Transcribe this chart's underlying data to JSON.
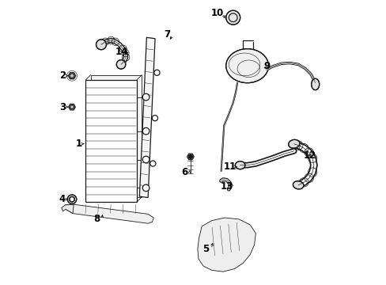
{
  "background_color": "#ffffff",
  "line_color": "#1a1a1a",
  "text_color": "#000000",
  "figsize": [
    4.89,
    3.6
  ],
  "dpi": 100,
  "font_size": 8.5,
  "label_positions": {
    "1": [
      0.095,
      0.495,
      0.115,
      0.495
    ],
    "2": [
      0.038,
      0.735,
      0.06,
      0.735
    ],
    "3": [
      0.038,
      0.625,
      0.06,
      0.625
    ],
    "4": [
      0.038,
      0.3,
      0.06,
      0.3
    ],
    "5": [
      0.545,
      0.125,
      0.57,
      0.155
    ],
    "6": [
      0.468,
      0.395,
      0.49,
      0.41
    ],
    "7": [
      0.408,
      0.88,
      0.415,
      0.855
    ],
    "8": [
      0.16,
      0.23,
      0.18,
      0.255
    ],
    "9": [
      0.758,
      0.77,
      0.74,
      0.76
    ],
    "10": [
      0.585,
      0.955,
      0.615,
      0.93
    ],
    "11": [
      0.628,
      0.415,
      0.655,
      0.415
    ],
    "12": [
      0.91,
      0.455,
      0.895,
      0.455
    ],
    "13": [
      0.618,
      0.345,
      0.635,
      0.365
    ],
    "14": [
      0.248,
      0.82,
      0.262,
      0.8
    ]
  }
}
